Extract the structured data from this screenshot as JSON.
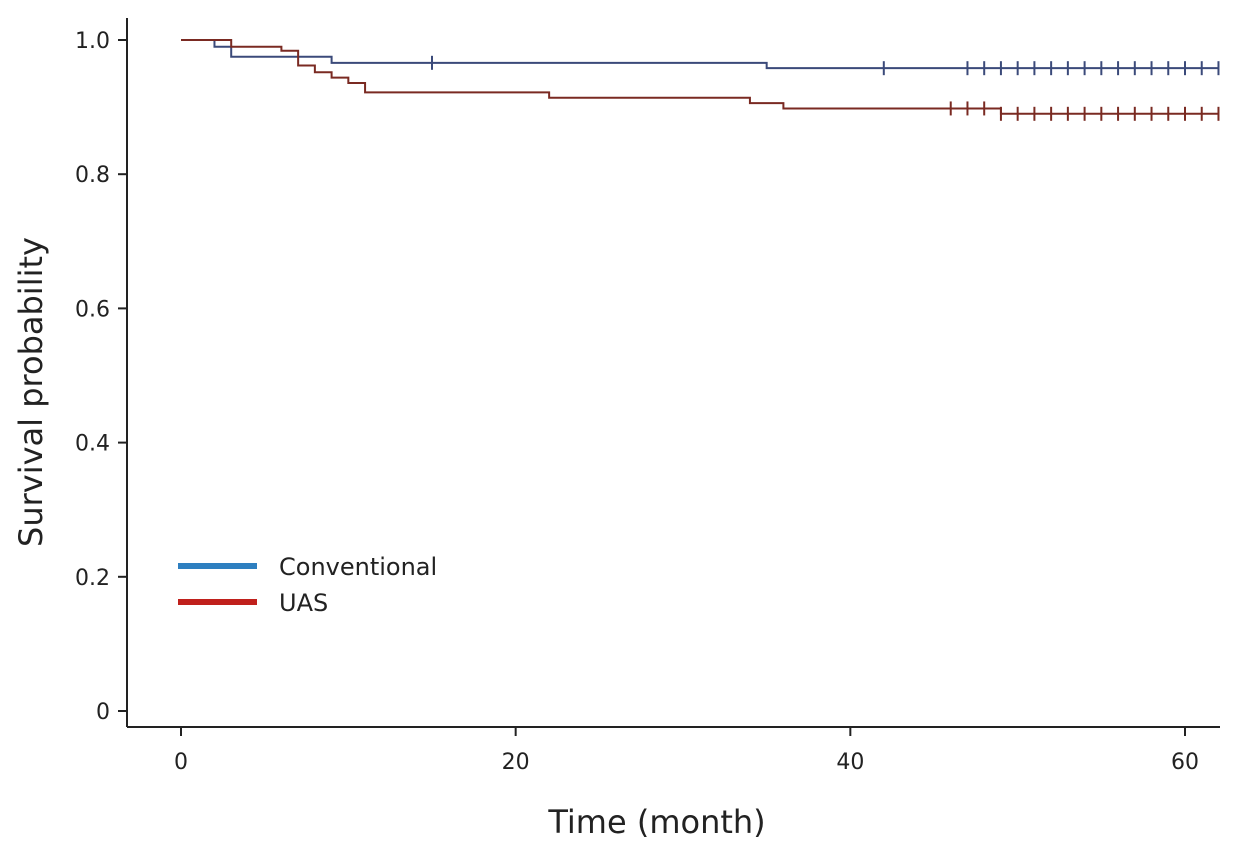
{
  "chart_data": {
    "type": "line",
    "subtype": "kaplan-meier-step",
    "title": "",
    "xlabel": "Time (month)",
    "ylabel": "Survival probability",
    "xlim": [
      0,
      62
    ],
    "ylim": [
      0,
      1.0
    ],
    "x_ticks": [
      0,
      20,
      40,
      60
    ],
    "y_ticks": [
      0,
      0.2,
      0.4,
      0.6,
      0.8,
      1.0
    ],
    "x_tick_labels": [
      "0",
      "20",
      "40",
      "60"
    ],
    "y_tick_labels": [
      "0",
      "0.2",
      "0.4",
      "0.6",
      "0.8",
      "1.0"
    ],
    "grid": false,
    "legend_position": "lower-left",
    "series": [
      {
        "name": "Conventional",
        "legend_color": "#2e7fc0",
        "line_color": "#3b4a7a",
        "steps": [
          [
            0,
            1.0
          ],
          [
            2,
            0.99
          ],
          [
            3,
            0.975
          ],
          [
            9,
            0.966
          ],
          [
            35,
            0.958
          ],
          [
            62,
            0.958
          ]
        ],
        "censor_times": [
          15,
          42,
          47,
          48,
          49,
          50,
          51,
          52,
          53,
          54,
          55,
          56,
          57,
          58,
          59,
          60,
          61,
          62
        ]
      },
      {
        "name": "UAS",
        "legend_color": "#c0201c",
        "line_color": "#7a2a22",
        "steps": [
          [
            0,
            1.0
          ],
          [
            3,
            0.99
          ],
          [
            6,
            0.984
          ],
          [
            7,
            0.962
          ],
          [
            8,
            0.952
          ],
          [
            9,
            0.944
          ],
          [
            10,
            0.936
          ],
          [
            11,
            0.922
          ],
          [
            22,
            0.914
          ],
          [
            34,
            0.906
          ],
          [
            36,
            0.898
          ],
          [
            49,
            0.89
          ],
          [
            62,
            0.89
          ]
        ],
        "censor_times": [
          46,
          47,
          48,
          49,
          50,
          51,
          52,
          53,
          54,
          55,
          56,
          57,
          58,
          59,
          60,
          61,
          62
        ]
      }
    ]
  }
}
